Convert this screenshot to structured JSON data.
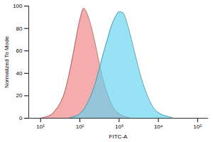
{
  "chart_data": {
    "type": "area",
    "x_label": "FITC-A",
    "y_label": "Normalized To Mode",
    "log": "x",
    "grid": false,
    "x": [
      10,
      13,
      16,
      20,
      25,
      32,
      40,
      50,
      63,
      79,
      100,
      126,
      158,
      200,
      251,
      316,
      398,
      501,
      631,
      794,
      1000,
      1259,
      1585,
      1995,
      2512,
      3162,
      3981,
      5012,
      6310,
      7943,
      10000,
      12589,
      15849,
      19953,
      25119,
      31623,
      39811
    ],
    "series": [
      {
        "color": "#f08080",
        "values": [
          0,
          1,
          2,
          4,
          8,
          14,
          22,
          35,
          52,
          70,
          88,
          98,
          92,
          80,
          65,
          48,
          33,
          22,
          13,
          7,
          4,
          2,
          1,
          0,
          0,
          0,
          0,
          0,
          0,
          0,
          0,
          0,
          0,
          0,
          0,
          0,
          0
        ]
      },
      {
        "color": "#5fd3f0",
        "values": [
          0,
          0,
          0,
          0,
          0,
          0,
          0,
          0,
          1,
          2,
          4,
          8,
          14,
          22,
          32,
          45,
          58,
          70,
          82,
          90,
          95,
          94,
          85,
          72,
          58,
          44,
          32,
          22,
          14,
          8,
          5,
          3,
          2,
          1,
          0,
          0,
          0
        ]
      }
    ],
    "xlim": [
      5,
      180000
    ],
    "xticks": [
      {
        "value": 10,
        "label": "10¹"
      },
      {
        "value": 100,
        "label": "10²"
      },
      {
        "value": 1000,
        "label": "10³"
      },
      {
        "value": 10000,
        "label": "10⁴"
      },
      {
        "value": 100000,
        "label": "10⁵"
      }
    ],
    "ylim": [
      0,
      100
    ],
    "yticks": [
      0,
      20,
      40,
      60,
      80,
      100
    ]
  }
}
